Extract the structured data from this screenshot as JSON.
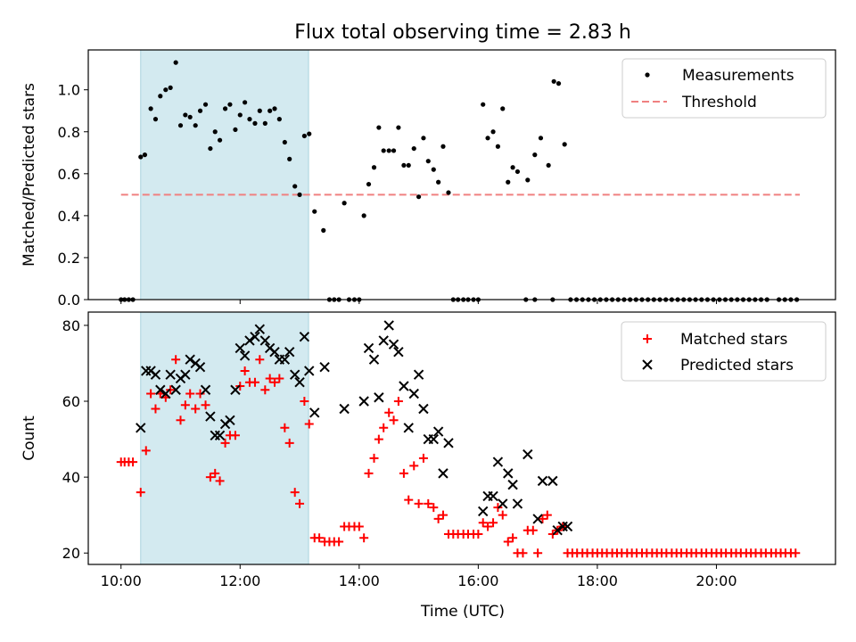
{
  "chart_data": {
    "title": "Flux total observing time = 2.83 h",
    "xlabel": "Time (UTC)",
    "x_unit": "hours UTC",
    "xlim": [
      9.45,
      22.0
    ],
    "x_ticks": [
      10,
      12,
      14,
      16,
      18,
      20
    ],
    "x_tick_labels": [
      "10:00",
      "12:00",
      "14:00",
      "16:00",
      "18:00",
      "20:00"
    ],
    "highlight_span": {
      "start": 10.33,
      "end": 13.15,
      "color": "#d3eaf0"
    },
    "top": {
      "type": "scatter",
      "ylabel": "Matched/Predicted stars",
      "ylim": [
        0,
        1.19
      ],
      "y_ticks": [
        0.0,
        0.2,
        0.4,
        0.6,
        0.8,
        1.0
      ],
      "y_tick_labels": [
        "0.0",
        "0.2",
        "0.4",
        "0.6",
        "0.8",
        "1.0"
      ],
      "legend": {
        "position": "top-right",
        "measurements_label": "Measurements",
        "threshold_label": "Threshold"
      },
      "threshold": {
        "value": 0.5,
        "x_start": 10.0,
        "x_end": 21.4,
        "color": "#f08080"
      },
      "measurements": [
        [
          10.0,
          0
        ],
        [
          10.06,
          0
        ],
        [
          10.13,
          0
        ],
        [
          10.2,
          0
        ],
        [
          10.33,
          0.68
        ],
        [
          10.4,
          0.69
        ],
        [
          10.5,
          0.91
        ],
        [
          10.58,
          0.86
        ],
        [
          10.66,
          0.97
        ],
        [
          10.75,
          1.0
        ],
        [
          10.83,
          1.01
        ],
        [
          10.92,
          1.13
        ],
        [
          11.0,
          0.83
        ],
        [
          11.08,
          0.88
        ],
        [
          11.16,
          0.87
        ],
        [
          11.25,
          0.83
        ],
        [
          11.33,
          0.9
        ],
        [
          11.42,
          0.93
        ],
        [
          11.5,
          0.72
        ],
        [
          11.58,
          0.8
        ],
        [
          11.66,
          0.76
        ],
        [
          11.75,
          0.91
        ],
        [
          11.83,
          0.93
        ],
        [
          11.92,
          0.81
        ],
        [
          12.0,
          0.88
        ],
        [
          12.08,
          0.94
        ],
        [
          12.16,
          0.86
        ],
        [
          12.25,
          0.84
        ],
        [
          12.33,
          0.9
        ],
        [
          12.42,
          0.84
        ],
        [
          12.5,
          0.9
        ],
        [
          12.58,
          0.91
        ],
        [
          12.66,
          0.86
        ],
        [
          12.75,
          0.75
        ],
        [
          12.83,
          0.67
        ],
        [
          12.92,
          0.54
        ],
        [
          13.0,
          0.5
        ],
        [
          13.08,
          0.78
        ],
        [
          13.16,
          0.79
        ],
        [
          13.25,
          0.42
        ],
        [
          13.4,
          0.33
        ],
        [
          13.5,
          0
        ],
        [
          13.58,
          0
        ],
        [
          13.66,
          0
        ],
        [
          13.75,
          0.46
        ],
        [
          13.83,
          0
        ],
        [
          13.92,
          0
        ],
        [
          14.0,
          0
        ],
        [
          14.08,
          0.4
        ],
        [
          14.16,
          0.55
        ],
        [
          14.25,
          0.63
        ],
        [
          14.33,
          0.82
        ],
        [
          14.41,
          0.71
        ],
        [
          14.5,
          0.71
        ],
        [
          14.58,
          0.71
        ],
        [
          14.66,
          0.82
        ],
        [
          14.75,
          0.64
        ],
        [
          14.83,
          0.64
        ],
        [
          14.92,
          0.72
        ],
        [
          15.0,
          0.49
        ],
        [
          15.08,
          0.77
        ],
        [
          15.16,
          0.66
        ],
        [
          15.25,
          0.62
        ],
        [
          15.33,
          0.56
        ],
        [
          15.41,
          0.73
        ],
        [
          15.5,
          0.51
        ],
        [
          15.58,
          0
        ],
        [
          15.66,
          0
        ],
        [
          15.75,
          0
        ],
        [
          15.83,
          0
        ],
        [
          15.92,
          0
        ],
        [
          16.0,
          0
        ],
        [
          16.08,
          0.93
        ],
        [
          16.16,
          0.77
        ],
        [
          16.25,
          0.8
        ],
        [
          16.33,
          0.73
        ],
        [
          16.41,
          0.91
        ],
        [
          16.5,
          0.56
        ],
        [
          16.58,
          0.63
        ],
        [
          16.66,
          0.61
        ],
        [
          16.83,
          0.57
        ],
        [
          16.95,
          0.69
        ],
        [
          17.05,
          0.77
        ],
        [
          17.18,
          0.64
        ],
        [
          17.27,
          1.04
        ],
        [
          17.35,
          1.03
        ],
        [
          17.45,
          0.74
        ],
        [
          16.8,
          0
        ],
        [
          16.95,
          0
        ],
        [
          17.25,
          0
        ],
        [
          17.55,
          0
        ],
        [
          17.65,
          0
        ],
        [
          17.75,
          0
        ],
        [
          17.85,
          0
        ],
        [
          17.95,
          0
        ],
        [
          18.05,
          0
        ],
        [
          18.15,
          0
        ],
        [
          18.25,
          0
        ],
        [
          18.35,
          0
        ],
        [
          18.45,
          0
        ],
        [
          18.55,
          0
        ],
        [
          18.65,
          0
        ],
        [
          18.75,
          0
        ],
        [
          18.85,
          0
        ],
        [
          18.95,
          0
        ],
        [
          19.05,
          0
        ],
        [
          19.15,
          0
        ],
        [
          19.25,
          0
        ],
        [
          19.35,
          0
        ],
        [
          19.45,
          0
        ],
        [
          19.55,
          0
        ],
        [
          19.65,
          0
        ],
        [
          19.75,
          0
        ],
        [
          19.85,
          0
        ],
        [
          19.95,
          0
        ],
        [
          20.05,
          0
        ],
        [
          20.15,
          0
        ],
        [
          20.25,
          0
        ],
        [
          20.35,
          0
        ],
        [
          20.45,
          0
        ],
        [
          20.55,
          0
        ],
        [
          20.65,
          0
        ],
        [
          20.75,
          0
        ],
        [
          20.85,
          0
        ],
        [
          21.05,
          0
        ],
        [
          21.15,
          0
        ],
        [
          21.25,
          0
        ],
        [
          21.35,
          0
        ]
      ]
    },
    "bottom": {
      "type": "scatter",
      "ylabel": "Count",
      "ylim": [
        17,
        83.5
      ],
      "y_ticks": [
        20,
        40,
        60,
        80
      ],
      "y_tick_labels": [
        "20",
        "40",
        "60",
        "80"
      ],
      "legend": {
        "position": "top-right",
        "matched_label": "Matched stars",
        "predicted_label": "Predicted stars"
      },
      "colors": {
        "matched": "#ff0000",
        "predicted": "#000000"
      },
      "matched": [
        [
          10.0,
          44
        ],
        [
          10.06,
          44
        ],
        [
          10.13,
          44
        ],
        [
          10.2,
          44
        ],
        [
          10.33,
          36
        ],
        [
          10.42,
          47
        ],
        [
          10.5,
          62
        ],
        [
          10.58,
          58
        ],
        [
          10.66,
          62
        ],
        [
          10.75,
          61
        ],
        [
          10.83,
          63
        ],
        [
          10.92,
          71
        ],
        [
          11.0,
          55
        ],
        [
          11.08,
          59
        ],
        [
          11.16,
          62
        ],
        [
          11.25,
          58
        ],
        [
          11.33,
          62
        ],
        [
          11.42,
          59
        ],
        [
          11.5,
          40
        ],
        [
          11.58,
          41
        ],
        [
          11.66,
          39
        ],
        [
          11.75,
          49
        ],
        [
          11.83,
          51
        ],
        [
          11.92,
          51
        ],
        [
          12.0,
          64
        ],
        [
          12.08,
          68
        ],
        [
          12.16,
          65
        ],
        [
          12.25,
          65
        ],
        [
          12.33,
          71
        ],
        [
          12.42,
          63
        ],
        [
          12.5,
          66
        ],
        [
          12.58,
          65
        ],
        [
          12.66,
          66
        ],
        [
          12.75,
          53
        ],
        [
          12.83,
          49
        ],
        [
          12.92,
          36
        ],
        [
          13.0,
          33
        ],
        [
          13.08,
          60
        ],
        [
          13.16,
          54
        ],
        [
          13.25,
          24
        ],
        [
          13.33,
          24
        ],
        [
          13.42,
          23
        ],
        [
          13.5,
          23
        ],
        [
          13.58,
          23
        ],
        [
          13.66,
          23
        ],
        [
          13.75,
          27
        ],
        [
          13.83,
          27
        ],
        [
          13.92,
          27
        ],
        [
          14.0,
          27
        ],
        [
          14.08,
          24
        ],
        [
          14.16,
          41
        ],
        [
          14.25,
          45
        ],
        [
          14.33,
          50
        ],
        [
          14.41,
          53
        ],
        [
          14.5,
          57
        ],
        [
          14.58,
          55
        ],
        [
          14.66,
          60
        ],
        [
          14.75,
          41
        ],
        [
          14.83,
          34
        ],
        [
          14.92,
          43
        ],
        [
          15.0,
          33
        ],
        [
          15.08,
          45
        ],
        [
          15.16,
          33
        ],
        [
          15.25,
          32
        ],
        [
          15.33,
          29
        ],
        [
          15.41,
          30
        ],
        [
          15.5,
          25
        ],
        [
          15.58,
          25
        ],
        [
          15.66,
          25
        ],
        [
          15.75,
          25
        ],
        [
          15.83,
          25
        ],
        [
          15.92,
          25
        ],
        [
          16.0,
          25
        ],
        [
          16.08,
          28
        ],
        [
          16.16,
          27
        ],
        [
          16.25,
          28
        ],
        [
          16.33,
          32
        ],
        [
          16.41,
          30
        ],
        [
          16.5,
          23
        ],
        [
          16.58,
          24
        ],
        [
          16.66,
          20
        ],
        [
          16.75,
          20
        ],
        [
          16.83,
          26
        ],
        [
          16.92,
          26
        ],
        [
          17.0,
          20
        ],
        [
          17.08,
          29
        ],
        [
          17.16,
          30
        ],
        [
          17.25,
          25
        ],
        [
          17.33,
          26
        ],
        [
          17.42,
          27
        ],
        [
          17.5,
          20
        ],
        [
          17.58,
          20
        ],
        [
          17.66,
          20
        ],
        [
          17.75,
          20
        ],
        [
          17.83,
          20
        ],
        [
          17.92,
          20
        ],
        [
          18.0,
          20
        ],
        [
          18.08,
          20
        ],
        [
          18.16,
          20
        ],
        [
          18.25,
          20
        ],
        [
          18.33,
          20
        ],
        [
          18.41,
          20
        ],
        [
          18.5,
          20
        ],
        [
          18.58,
          20
        ],
        [
          18.66,
          20
        ],
        [
          18.75,
          20
        ],
        [
          18.83,
          20
        ],
        [
          18.92,
          20
        ],
        [
          19.0,
          20
        ],
        [
          19.08,
          20
        ],
        [
          19.16,
          20
        ],
        [
          19.25,
          20
        ],
        [
          19.33,
          20
        ],
        [
          19.41,
          20
        ],
        [
          19.5,
          20
        ],
        [
          19.58,
          20
        ],
        [
          19.66,
          20
        ],
        [
          19.75,
          20
        ],
        [
          19.83,
          20
        ],
        [
          19.92,
          20
        ],
        [
          20.0,
          20
        ],
        [
          20.08,
          20
        ],
        [
          20.16,
          20
        ],
        [
          20.25,
          20
        ],
        [
          20.33,
          20
        ],
        [
          20.41,
          20
        ],
        [
          20.5,
          20
        ],
        [
          20.58,
          20
        ],
        [
          20.66,
          20
        ],
        [
          20.75,
          20
        ],
        [
          20.83,
          20
        ],
        [
          20.92,
          20
        ],
        [
          21.0,
          20
        ],
        [
          21.08,
          20
        ],
        [
          21.16,
          20
        ],
        [
          21.25,
          20
        ],
        [
          21.33,
          20
        ]
      ],
      "predicted": [
        [
          10.33,
          53
        ],
        [
          10.42,
          68
        ],
        [
          10.5,
          68
        ],
        [
          10.58,
          67
        ],
        [
          10.66,
          63
        ],
        [
          10.75,
          62
        ],
        [
          10.83,
          67
        ],
        [
          10.92,
          63
        ],
        [
          11.0,
          66
        ],
        [
          11.08,
          67
        ],
        [
          11.16,
          71
        ],
        [
          11.25,
          70
        ],
        [
          11.33,
          69
        ],
        [
          11.42,
          63
        ],
        [
          11.5,
          56
        ],
        [
          11.58,
          51
        ],
        [
          11.66,
          51
        ],
        [
          11.75,
          54
        ],
        [
          11.83,
          55
        ],
        [
          11.92,
          63
        ],
        [
          12.0,
          74
        ],
        [
          12.08,
          72
        ],
        [
          12.16,
          76
        ],
        [
          12.25,
          77
        ],
        [
          12.33,
          79
        ],
        [
          12.42,
          76
        ],
        [
          12.5,
          74
        ],
        [
          12.58,
          73
        ],
        [
          12.66,
          71
        ],
        [
          12.75,
          71
        ],
        [
          12.83,
          73
        ],
        [
          12.92,
          67
        ],
        [
          13.0,
          65
        ],
        [
          13.08,
          77
        ],
        [
          13.16,
          68
        ],
        [
          13.25,
          57
        ],
        [
          13.42,
          69
        ],
        [
          13.75,
          58
        ],
        [
          14.08,
          60
        ],
        [
          14.16,
          74
        ],
        [
          14.25,
          71
        ],
        [
          14.33,
          61
        ],
        [
          14.41,
          76
        ],
        [
          14.5,
          80
        ],
        [
          14.58,
          75
        ],
        [
          14.66,
          73
        ],
        [
          14.75,
          64
        ],
        [
          14.83,
          53
        ],
        [
          14.92,
          62
        ],
        [
          15.0,
          67
        ],
        [
          15.08,
          58
        ],
        [
          15.16,
          50
        ],
        [
          15.25,
          50
        ],
        [
          15.33,
          52
        ],
        [
          15.41,
          41
        ],
        [
          15.5,
          49
        ],
        [
          16.08,
          31
        ],
        [
          16.16,
          35
        ],
        [
          16.25,
          35
        ],
        [
          16.33,
          44
        ],
        [
          16.41,
          33
        ],
        [
          16.5,
          41
        ],
        [
          16.58,
          38
        ],
        [
          16.66,
          33
        ],
        [
          16.83,
          46
        ],
        [
          17.0,
          29
        ],
        [
          17.08,
          39
        ],
        [
          17.25,
          39
        ],
        [
          17.33,
          26
        ],
        [
          17.42,
          27
        ],
        [
          17.5,
          27
        ]
      ]
    }
  }
}
